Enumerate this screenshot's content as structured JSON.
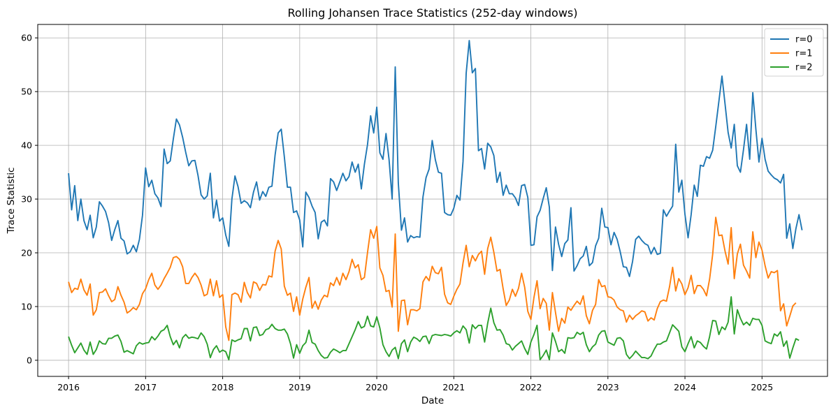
{
  "chart_data": {
    "type": "line",
    "title": "Rolling Johansen Trace Statistics (252-day windows)",
    "xlabel": "Date",
    "ylabel": "Trace Statistic",
    "xlim": [
      2015.6,
      2025.85
    ],
    "ylim": [
      -3,
      62.5
    ],
    "xticks": [
      "2016",
      "2017",
      "2018",
      "2019",
      "2020",
      "2021",
      "2022",
      "2023",
      "2024",
      "2025"
    ],
    "yticks": [
      0,
      10,
      20,
      30,
      40,
      50,
      60
    ],
    "grid": true,
    "legend_position": "top-right",
    "x_start": 2016.0,
    "x_step": 0.04,
    "series": [
      {
        "name": "r=0",
        "color": "#1f77b4",
        "values": [
          34.8,
          28.0,
          32.5,
          26.0,
          30.0,
          26.0,
          24.3,
          27.0,
          22.8,
          24.8,
          29.5,
          28.7,
          27.7,
          25.6,
          22.3,
          24.3,
          26.0,
          22.7,
          22.2,
          19.8,
          20.2,
          21.4,
          20.2,
          22.5,
          27.0,
          35.8,
          32.3,
          33.5,
          31.0,
          30.2,
          28.6,
          39.3,
          36.6,
          37.1,
          41.2,
          44.9,
          43.8,
          41.5,
          38.7,
          36.2,
          37.1,
          37.2,
          34.4,
          30.8,
          30.0,
          30.6,
          34.8,
          26.5,
          29.8,
          25.9,
          26.5,
          23.3,
          21.2,
          30.0,
          34.3,
          32.3,
          29.2,
          29.7,
          29.3,
          28.4,
          31.3,
          33.2,
          29.8,
          31.4,
          30.5,
          32.2,
          32.4,
          38.2,
          42.3,
          43.0,
          37.9,
          32.2,
          32.2,
          27.5,
          27.8,
          26.1,
          21.1,
          31.3,
          30.3,
          28.7,
          27.5,
          22.6,
          25.7,
          26.1,
          25.0,
          33.8,
          33.2,
          31.6,
          33.2,
          34.8,
          33.4,
          34.2,
          36.9,
          35.0,
          36.5,
          31.9,
          36.5,
          40.1,
          45.5,
          42.3,
          47.1,
          38.6,
          37.4,
          42.2,
          37.3,
          30.0,
          54.6,
          33.0,
          24.2,
          26.5,
          22.0,
          23.2,
          22.8,
          23.0,
          22.9,
          30.4,
          34.0,
          35.6,
          40.9,
          37.3,
          35.0,
          34.8,
          27.5,
          27.1,
          27.0,
          28.3,
          30.7,
          29.8,
          37.0,
          53.4,
          59.5,
          53.5,
          54.3,
          39.0,
          39.4,
          35.6,
          40.4,
          39.7,
          38.1,
          33.1,
          35.0,
          30.7,
          32.6,
          31.0,
          31.0,
          30.2,
          28.8,
          32.5,
          32.7,
          30.3,
          21.4,
          21.5,
          26.7,
          27.9,
          30.1,
          32.1,
          28.5,
          16.7,
          24.8,
          21.6,
          19.3,
          21.7,
          22.4,
          28.4,
          16.6,
          17.6,
          18.9,
          19.4,
          21.2,
          17.6,
          18.2,
          21.3,
          22.7,
          28.3,
          24.8,
          24.7,
          21.5,
          23.8,
          22.5,
          20.2,
          17.4,
          17.3,
          15.6,
          18.4,
          22.5,
          23.1,
          22.3,
          21.7,
          21.4,
          19.8,
          21.0,
          19.7,
          19.9,
          28.0,
          26.8,
          27.8,
          28.7,
          40.2,
          31.3,
          33.5,
          27.2,
          22.8,
          27.1,
          32.6,
          30.5,
          36.3,
          36.1,
          37.9,
          37.6,
          39.1,
          43.5,
          48.2,
          52.9,
          47.7,
          42.4,
          39.5,
          43.9,
          36.2,
          35.0,
          39.2,
          43.9,
          37.4,
          49.8,
          43.0,
          36.9,
          41.3,
          37.4,
          35.2,
          34.5,
          33.9,
          33.6,
          33.0,
          34.6,
          22.7,
          25.4,
          20.8,
          24.5,
          27.1,
          24.2
        ]
      },
      {
        "name": "r=1",
        "color": "#ff7f0e",
        "values": [
          14.6,
          12.6,
          13.4,
          13.2,
          15.1,
          13.1,
          12.1,
          14.2,
          8.4,
          9.4,
          12.6,
          12.7,
          13.3,
          12.0,
          10.9,
          11.3,
          13.7,
          12.1,
          10.8,
          8.8,
          9.2,
          9.8,
          9.4,
          10.4,
          12.4,
          13.3,
          15.0,
          16.2,
          14.0,
          13.2,
          14.0,
          15.2,
          16.2,
          17.3,
          19.1,
          19.3,
          18.8,
          17.4,
          14.3,
          14.3,
          15.4,
          16.2,
          15.4,
          14.0,
          12.0,
          12.3,
          15.1,
          12.0,
          14.8,
          11.7,
          12.2,
          6.2,
          3.7,
          12.2,
          12.5,
          12.2,
          10.8,
          14.5,
          12.6,
          11.6,
          14.6,
          14.3,
          13.0,
          14.1,
          14.0,
          15.7,
          15.5,
          20.3,
          22.3,
          20.7,
          13.8,
          12.1,
          12.5,
          9.1,
          11.8,
          8.4,
          11.4,
          13.6,
          15.4,
          9.7,
          11.0,
          9.5,
          11.2,
          12.1,
          11.8,
          14.4,
          13.9,
          15.4,
          14.0,
          16.2,
          15.0,
          16.5,
          18.8,
          17.2,
          17.8,
          15.0,
          15.4,
          20.0,
          24.3,
          22.7,
          24.9,
          17.2,
          15.8,
          12.8,
          13.0,
          9.9,
          23.5,
          5.4,
          11.1,
          11.2,
          6.6,
          9.4,
          9.4,
          9.2,
          9.6,
          14.6,
          15.6,
          14.8,
          17.5,
          16.3,
          16.1,
          17.3,
          12.3,
          10.7,
          10.4,
          11.9,
          13.2,
          14.2,
          18.1,
          21.4,
          17.4,
          19.5,
          18.5,
          19.7,
          20.3,
          16.0,
          20.8,
          22.9,
          20.1,
          16.6,
          16.9,
          13.3,
          10.2,
          11.2,
          13.2,
          11.9,
          13.4,
          16.2,
          13.6,
          9.1,
          7.6,
          11.7,
          14.8,
          9.6,
          11.5,
          10.6,
          5.6,
          12.6,
          8.9,
          5.4,
          7.8,
          6.9,
          9.9,
          9.3,
          10.2,
          11.0,
          10.4,
          12.0,
          8.3,
          6.8,
          9.3,
          10.4,
          15.0,
          13.7,
          13.9,
          11.8,
          11.7,
          11.2,
          9.9,
          9.4,
          9.2,
          7.1,
          8.4,
          7.6,
          8.3,
          8.7,
          9.2,
          9.0,
          7.3,
          7.9,
          7.5,
          9.6,
          10.9,
          11.2,
          11.0,
          13.7,
          17.3,
          12.9,
          15.2,
          14.2,
          12.2,
          13.5,
          15.8,
          12.4,
          13.9,
          13.9,
          13.2,
          12.0,
          15.1,
          19.7,
          26.6,
          23.2,
          23.3,
          20.3,
          17.9,
          24.7,
          15.2,
          19.8,
          21.6,
          17.7,
          16.6,
          15.3,
          23.9,
          19.1,
          22.0,
          20.5,
          17.6,
          15.3,
          16.5,
          16.3,
          16.7,
          9.2,
          10.5,
          6.4,
          8.2,
          10.1,
          10.7
        ]
      },
      {
        "name": "r=2",
        "color": "#2ca02c",
        "values": [
          4.4,
          2.8,
          1.4,
          2.3,
          3.2,
          1.9,
          1.1,
          3.4,
          1.1,
          2.0,
          3.6,
          3.1,
          3.0,
          4.1,
          4.1,
          4.5,
          4.7,
          3.5,
          1.5,
          1.8,
          1.5,
          1.2,
          2.7,
          3.3,
          3.0,
          3.2,
          3.3,
          4.4,
          3.8,
          4.5,
          5.4,
          5.7,
          6.5,
          4.4,
          2.9,
          3.7,
          2.3,
          4.2,
          4.8,
          4.1,
          4.3,
          4.2,
          4.0,
          5.1,
          4.4,
          3.0,
          0.5,
          2.0,
          2.7,
          1.5,
          1.9,
          1.6,
          0.1,
          3.8,
          3.5,
          3.8,
          4.0,
          5.9,
          5.9,
          3.6,
          6.1,
          6.2,
          4.6,
          4.8,
          5.7,
          5.9,
          6.7,
          5.9,
          5.6,
          5.6,
          5.8,
          4.9,
          3.1,
          0.4,
          2.9,
          1.3,
          2.7,
          3.3,
          5.6,
          3.3,
          3.0,
          1.8,
          0.9,
          0.4,
          0.5,
          1.5,
          2.1,
          1.8,
          1.4,
          1.8,
          1.8,
          3.1,
          4.4,
          5.7,
          7.2,
          6.0,
          6.3,
          8.2,
          6.4,
          6.2,
          8.1,
          6.0,
          2.9,
          1.6,
          0.7,
          1.9,
          2.4,
          0.3,
          3.1,
          3.8,
          1.6,
          3.4,
          4.3,
          4.0,
          3.5,
          4.4,
          4.5,
          3.1,
          4.6,
          4.8,
          4.7,
          4.6,
          4.8,
          4.7,
          4.5,
          5.1,
          5.5,
          5.1,
          6.4,
          5.7,
          3.2,
          6.6,
          5.9,
          6.5,
          6.5,
          3.4,
          6.9,
          9.7,
          7.0,
          5.6,
          5.7,
          4.7,
          3.1,
          2.9,
          1.9,
          2.6,
          3.1,
          3.6,
          2.2,
          1.1,
          3.4,
          4.8,
          6.5,
          0.1,
          0.9,
          1.9,
          0.1,
          5.1,
          3.5,
          1.6,
          2.0,
          1.3,
          4.2,
          4.1,
          4.2,
          5.2,
          4.8,
          5.2,
          2.9,
          1.6,
          2.5,
          3.0,
          4.7,
          5.4,
          5.5,
          3.4,
          3.1,
          2.8,
          4.1,
          4.2,
          3.6,
          1.1,
          0.3,
          0.9,
          1.7,
          1.1,
          0.5,
          0.5,
          0.3,
          0.8,
          2.0,
          3.0,
          3.0,
          3.4,
          3.6,
          5.1,
          6.6,
          6.0,
          5.4,
          2.5,
          1.6,
          3.1,
          4.4,
          2.3,
          3.6,
          3.3,
          2.6,
          2.1,
          4.4,
          7.4,
          7.3,
          4.8,
          6.2,
          5.7,
          7.1,
          11.8,
          4.9,
          9.4,
          7.8,
          6.6,
          7.1,
          6.5,
          7.8,
          7.6,
          7.6,
          6.5,
          3.6,
          3.3,
          3.1,
          4.9,
          4.5,
          5.3,
          2.6,
          3.6,
          0.4,
          2.3,
          4.0,
          3.7
        ]
      }
    ]
  }
}
